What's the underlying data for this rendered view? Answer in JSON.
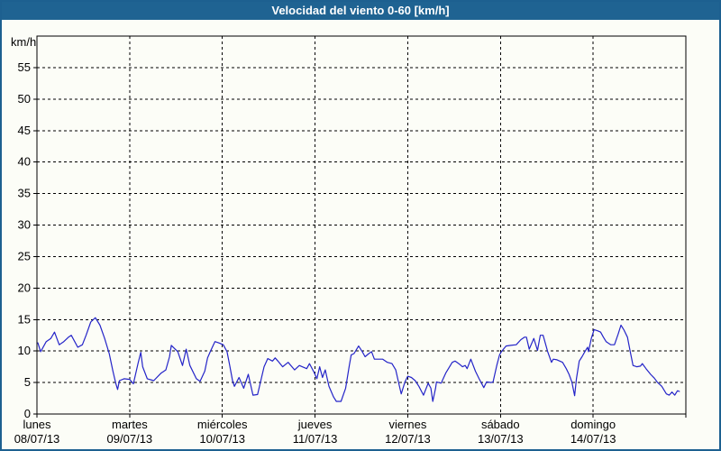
{
  "window": {
    "title": "Velocidad del viento 0-60 [km/h]"
  },
  "colors": {
    "titlebar": "#1f6392",
    "border": "#1d6090",
    "background": "#fcfdf7",
    "line": "#2424c8",
    "grid": "#000000",
    "text": "#000000"
  },
  "chart_data": {
    "type": "line",
    "title": "Velocidad del viento 0-60 [km/h]",
    "y_unit_label": "km/h",
    "ylim": [
      0,
      60
    ],
    "y_tick_step": 5,
    "y_ticks": [
      0,
      5,
      10,
      15,
      20,
      25,
      30,
      35,
      40,
      45,
      50,
      55
    ],
    "grid": "dashed",
    "legend": "none",
    "x_days": [
      {
        "name": "lunes",
        "date": "08/07/13"
      },
      {
        "name": "martes",
        "date": "09/07/13"
      },
      {
        "name": "miércoles",
        "date": "10/07/13"
      },
      {
        "name": "jueves",
        "date": "11/07/13"
      },
      {
        "name": "viernes",
        "date": "12/07/13"
      },
      {
        "name": "sábado",
        "date": "13/07/13"
      },
      {
        "name": "domingo",
        "date": "14/07/13"
      }
    ],
    "series": [
      {
        "name": "velocidad del viento",
        "color": "#2424c8",
        "points": [
          [
            0.01,
            11.3
          ],
          [
            0.04,
            9.9
          ],
          [
            0.1,
            11.5
          ],
          [
            0.15,
            12.0
          ],
          [
            0.19,
            13.0
          ],
          [
            0.24,
            11.0
          ],
          [
            0.29,
            11.5
          ],
          [
            0.34,
            12.2
          ],
          [
            0.37,
            12.5
          ],
          [
            0.44,
            10.6
          ],
          [
            0.49,
            11.0
          ],
          [
            0.53,
            12.5
          ],
          [
            0.58,
            14.6
          ],
          [
            0.63,
            15.3
          ],
          [
            0.68,
            14.1
          ],
          [
            0.73,
            12.0
          ],
          [
            0.78,
            9.6
          ],
          [
            0.82,
            6.8
          ],
          [
            0.85,
            4.9
          ],
          [
            0.87,
            3.9
          ],
          [
            0.89,
            5.3
          ],
          [
            0.94,
            5.6
          ],
          [
            1.0,
            5.5
          ],
          [
            1.04,
            4.8
          ],
          [
            1.09,
            8.0
          ],
          [
            1.12,
            9.8
          ],
          [
            1.14,
            7.5
          ],
          [
            1.19,
            5.6
          ],
          [
            1.26,
            5.3
          ],
          [
            1.34,
            6.5
          ],
          [
            1.39,
            7.0
          ],
          [
            1.43,
            9.1
          ],
          [
            1.45,
            10.9
          ],
          [
            1.52,
            9.9
          ],
          [
            1.57,
            7.7
          ],
          [
            1.61,
            10.3
          ],
          [
            1.65,
            7.7
          ],
          [
            1.72,
            5.6
          ],
          [
            1.76,
            5.2
          ],
          [
            1.81,
            6.8
          ],
          [
            1.84,
            8.9
          ],
          [
            1.87,
            9.9
          ],
          [
            1.92,
            11.5
          ],
          [
            1.96,
            11.3
          ],
          [
            2.01,
            11.0
          ],
          [
            2.05,
            9.9
          ],
          [
            2.08,
            7.7
          ],
          [
            2.11,
            5.3
          ],
          [
            2.13,
            4.4
          ],
          [
            2.18,
            5.8
          ],
          [
            2.23,
            4.1
          ],
          [
            2.28,
            6.3
          ],
          [
            2.33,
            3.0
          ],
          [
            2.38,
            3.1
          ],
          [
            2.45,
            7.5
          ],
          [
            2.49,
            8.8
          ],
          [
            2.54,
            8.4
          ],
          [
            2.57,
            8.9
          ],
          [
            2.6,
            8.4
          ],
          [
            2.65,
            7.5
          ],
          [
            2.71,
            8.2
          ],
          [
            2.78,
            7.0
          ],
          [
            2.83,
            7.7
          ],
          [
            2.91,
            7.2
          ],
          [
            2.94,
            8.0
          ],
          [
            2.99,
            6.6
          ],
          [
            3.02,
            5.6
          ],
          [
            3.05,
            7.5
          ],
          [
            3.08,
            5.8
          ],
          [
            3.11,
            7.0
          ],
          [
            3.15,
            4.4
          ],
          [
            3.2,
            2.7
          ],
          [
            3.23,
            2.0
          ],
          [
            3.28,
            2.0
          ],
          [
            3.33,
            4.1
          ],
          [
            3.37,
            7.7
          ],
          [
            3.39,
            9.4
          ],
          [
            3.42,
            9.6
          ],
          [
            3.47,
            10.8
          ],
          [
            3.51,
            9.9
          ],
          [
            3.54,
            9.1
          ],
          [
            3.58,
            9.6
          ],
          [
            3.61,
            9.9
          ],
          [
            3.64,
            8.7
          ],
          [
            3.68,
            8.7
          ],
          [
            3.73,
            8.7
          ],
          [
            3.78,
            8.2
          ],
          [
            3.83,
            8.0
          ],
          [
            3.87,
            7.0
          ],
          [
            3.9,
            5.1
          ],
          [
            3.93,
            3.2
          ],
          [
            3.97,
            5.1
          ],
          [
            4.0,
            6.0
          ],
          [
            4.04,
            5.8
          ],
          [
            4.08,
            5.3
          ],
          [
            4.12,
            4.4
          ],
          [
            4.17,
            3.0
          ],
          [
            4.22,
            4.9
          ],
          [
            4.25,
            4.1
          ],
          [
            4.27,
            2.0
          ],
          [
            4.3,
            4.1
          ],
          [
            4.31,
            5.1
          ],
          [
            4.36,
            4.9
          ],
          [
            4.41,
            6.5
          ],
          [
            4.48,
            8.2
          ],
          [
            4.51,
            8.4
          ],
          [
            4.55,
            8.0
          ],
          [
            4.59,
            7.5
          ],
          [
            4.62,
            7.7
          ],
          [
            4.64,
            7.2
          ],
          [
            4.68,
            8.7
          ],
          [
            4.73,
            6.8
          ],
          [
            4.77,
            5.6
          ],
          [
            4.82,
            4.2
          ],
          [
            4.85,
            5.1
          ],
          [
            4.9,
            5.0
          ],
          [
            4.92,
            5.1
          ],
          [
            4.96,
            7.7
          ],
          [
            4.99,
            9.4
          ],
          [
            5.01,
            9.9
          ],
          [
            5.06,
            10.8
          ],
          [
            5.11,
            10.9
          ],
          [
            5.17,
            11.0
          ],
          [
            5.22,
            11.8
          ],
          [
            5.26,
            12.2
          ],
          [
            5.28,
            12.2
          ],
          [
            5.31,
            10.3
          ],
          [
            5.36,
            12.0
          ],
          [
            5.4,
            10.1
          ],
          [
            5.43,
            12.5
          ],
          [
            5.46,
            12.5
          ],
          [
            5.51,
            9.9
          ],
          [
            5.55,
            8.2
          ],
          [
            5.57,
            8.7
          ],
          [
            5.61,
            8.6
          ],
          [
            5.64,
            8.4
          ],
          [
            5.67,
            8.2
          ],
          [
            5.71,
            7.2
          ],
          [
            5.74,
            6.3
          ],
          [
            5.77,
            5.1
          ],
          [
            5.8,
            2.9
          ],
          [
            5.82,
            5.6
          ],
          [
            5.85,
            8.4
          ],
          [
            5.88,
            9.1
          ],
          [
            5.91,
            9.9
          ],
          [
            5.94,
            10.6
          ],
          [
            5.95,
            9.9
          ],
          [
            5.98,
            12.0
          ],
          [
            6.01,
            13.4
          ],
          [
            6.05,
            13.2
          ],
          [
            6.08,
            13.0
          ],
          [
            6.11,
            12.2
          ],
          [
            6.14,
            11.5
          ],
          [
            6.19,
            11.0
          ],
          [
            6.23,
            11.0
          ],
          [
            6.27,
            12.7
          ],
          [
            6.3,
            14.1
          ],
          [
            6.33,
            13.4
          ],
          [
            6.37,
            12.2
          ],
          [
            6.4,
            9.9
          ],
          [
            6.43,
            7.7
          ],
          [
            6.47,
            7.5
          ],
          [
            6.51,
            7.6
          ],
          [
            6.53,
            8.0
          ],
          [
            6.57,
            7.2
          ],
          [
            6.62,
            6.3
          ],
          [
            6.66,
            5.7
          ],
          [
            6.69,
            5.1
          ],
          [
            6.74,
            4.4
          ],
          [
            6.79,
            3.2
          ],
          [
            6.82,
            3.0
          ],
          [
            6.85,
            3.5
          ],
          [
            6.88,
            3.0
          ],
          [
            6.91,
            3.7
          ],
          [
            6.93,
            3.6
          ]
        ]
      }
    ]
  }
}
